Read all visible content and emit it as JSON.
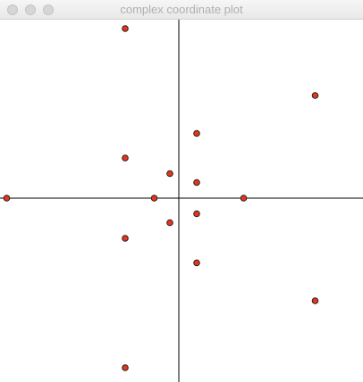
{
  "window": {
    "title": "complex coordinate plot",
    "buttons": [
      "close",
      "minimize",
      "zoom"
    ]
  },
  "colors": {
    "point_fill": "#e8341c",
    "point_stroke": "#222222",
    "axis": "#000000"
  },
  "chart_data": {
    "type": "scatter",
    "title": "",
    "xlabel": "",
    "ylabel": "",
    "xlim": [
      -4,
      4
    ],
    "ylim": [
      -4,
      4
    ],
    "grid": false,
    "points": [
      {
        "x": -3.85,
        "y": 0
      },
      {
        "x": -1.2,
        "y": 3.8
      },
      {
        "x": 3.05,
        "y": 2.3
      },
      {
        "x": 0.4,
        "y": 1.45
      },
      {
        "x": -1.2,
        "y": 0.9
      },
      {
        "x": -0.2,
        "y": 0.55
      },
      {
        "x": 0.4,
        "y": 0.35
      },
      {
        "x": -0.55,
        "y": 0
      },
      {
        "x": 1.45,
        "y": 0
      },
      {
        "x": 0.4,
        "y": -0.35
      },
      {
        "x": -0.2,
        "y": -0.55
      },
      {
        "x": -1.2,
        "y": -0.9
      },
      {
        "x": 0.4,
        "y": -1.45
      },
      {
        "x": 3.05,
        "y": -2.3
      },
      {
        "x": -1.2,
        "y": -3.8
      }
    ]
  }
}
